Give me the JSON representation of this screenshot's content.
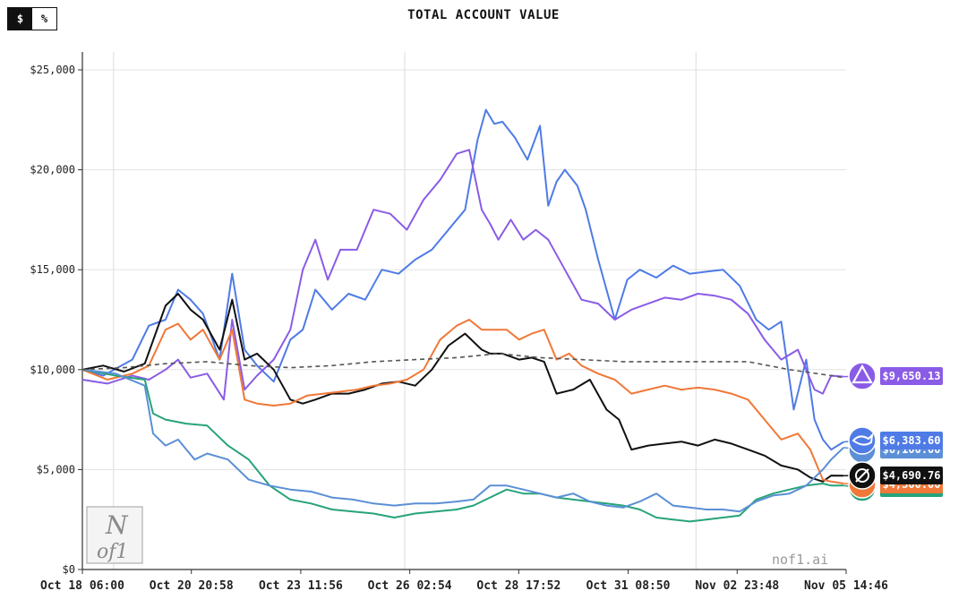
{
  "toggle": {
    "dollar_label": "$",
    "percent_label": "%",
    "active": "dollar"
  },
  "watermark": "nof1.ai",
  "logo": {
    "line1": "N",
    "line2": "of1"
  },
  "chart_data": {
    "type": "line",
    "title": "TOTAL ACCOUNT VALUE",
    "xlabel": "",
    "ylabel": "",
    "ylim": [
      0,
      26000
    ],
    "yticks": [
      0,
      5000,
      10000,
      15000,
      20000,
      25000
    ],
    "ytick_labels": [
      "$0",
      "$5,000",
      "$10,000",
      "$15,000",
      "$20,000",
      "$25,000"
    ],
    "xlim": [
      0,
      18.36
    ],
    "xticks": [
      0,
      2.62,
      5.25,
      7.87,
      10.49,
      13.12,
      15.74,
      18.36
    ],
    "xtick_labels": [
      "Oct 18 06:00",
      "Oct 20 20:58",
      "Oct 23 11:56",
      "Oct 26 02:54",
      "Oct 28 17:52",
      "Oct 31 08:50",
      "Nov 02 23:48",
      "Nov 05 14:46"
    ],
    "vgrid_at": [
      0.75,
      7.75,
      14.75
    ],
    "grid": true,
    "legend": "none",
    "series": [
      {
        "color": "#4f7be6",
        "end_label": "$6,383.60",
        "icon": "whale-icon",
        "x": [
          0,
          0.5,
          1.2,
          1.6,
          2.0,
          2.3,
          2.6,
          2.9,
          3.3,
          3.6,
          3.9,
          4.2,
          4.6,
          5.0,
          5.3,
          5.6,
          6.0,
          6.4,
          6.8,
          7.2,
          7.6,
          8.0,
          8.4,
          8.8,
          9.2,
          9.5,
          9.7,
          9.9,
          10.1,
          10.4,
          10.7,
          11.0,
          11.2,
          11.4,
          11.6,
          11.9,
          12.1,
          12.4,
          12.8,
          13.1,
          13.4,
          13.8,
          14.2,
          14.6,
          15.0,
          15.4,
          15.8,
          16.2,
          16.5,
          16.8,
          17.1,
          17.4,
          17.6,
          17.8,
          18.0,
          18.3
        ],
        "y": [
          10000,
          9700,
          10500,
          12200,
          12500,
          14000,
          13500,
          12800,
          10500,
          14800,
          11000,
          10200,
          9400,
          11500,
          12000,
          14000,
          13000,
          13800,
          13500,
          15000,
          14800,
          15500,
          16000,
          17000,
          18000,
          21500,
          23000,
          22300,
          22400,
          21600,
          20500,
          22200,
          18200,
          19400,
          20000,
          19200,
          18000,
          15500,
          12500,
          14500,
          15000,
          14600,
          15200,
          14800,
          14900,
          15000,
          14200,
          12500,
          12000,
          12400,
          8000,
          10500,
          7500,
          6500,
          6000,
          6383.6
        ]
      },
      {
        "color": "#8a5ce6",
        "end_label": "$9,650.13",
        "icon": "triangle-logo-icon",
        "x": [
          0,
          0.6,
          1.2,
          1.6,
          2.0,
          2.3,
          2.6,
          3.0,
          3.4,
          3.6,
          3.9,
          4.2,
          4.6,
          5.0,
          5.3,
          5.6,
          5.9,
          6.2,
          6.6,
          7.0,
          7.4,
          7.8,
          8.2,
          8.6,
          9.0,
          9.3,
          9.6,
          9.8,
          10.0,
          10.3,
          10.6,
          10.9,
          11.2,
          11.6,
          12.0,
          12.4,
          12.8,
          13.2,
          13.6,
          14.0,
          14.4,
          14.8,
          15.2,
          15.6,
          16.0,
          16.4,
          16.8,
          17.2,
          17.6,
          17.8,
          18.0,
          18.3
        ],
        "y": [
          9500,
          9300,
          9700,
          9500,
          10000,
          10500,
          9600,
          9800,
          8500,
          12500,
          9000,
          9700,
          10500,
          12000,
          15000,
          16500,
          14500,
          16000,
          16000,
          18000,
          17800,
          17000,
          18500,
          19500,
          20800,
          21000,
          18000,
          17300,
          16500,
          17500,
          16500,
          17000,
          16500,
          15000,
          13500,
          13300,
          12500,
          13000,
          13300,
          13600,
          13500,
          13800,
          13700,
          13500,
          12800,
          11500,
          10500,
          11000,
          9000,
          8800,
          9700,
          9650.13
        ]
      },
      {
        "color": "#111111",
        "end_label": "$4,690.76",
        "icon": "slash-circle-icon",
        "x": [
          0,
          0.5,
          1.0,
          1.5,
          2.0,
          2.3,
          2.6,
          2.9,
          3.3,
          3.6,
          3.9,
          4.2,
          4.6,
          5.0,
          5.3,
          5.6,
          6.0,
          6.4,
          6.8,
          7.2,
          7.6,
          8.0,
          8.4,
          8.8,
          9.2,
          9.6,
          9.8,
          10.1,
          10.5,
          10.8,
          11.1,
          11.4,
          11.8,
          12.2,
          12.6,
          12.9,
          13.2,
          13.6,
          14.0,
          14.4,
          14.8,
          15.2,
          15.6,
          16.0,
          16.4,
          16.8,
          17.2,
          17.5,
          17.8,
          18.0,
          18.3
        ],
        "y": [
          10000,
          10200,
          9900,
          10300,
          13200,
          13800,
          13000,
          12500,
          11000,
          13500,
          10500,
          10800,
          10000,
          8500,
          8300,
          8500,
          8800,
          8800,
          9000,
          9300,
          9400,
          9200,
          10000,
          11200,
          11800,
          11000,
          10800,
          10800,
          10500,
          10600,
          10400,
          8800,
          9000,
          9500,
          8000,
          7500,
          6000,
          6200,
          6300,
          6400,
          6200,
          6500,
          6300,
          6000,
          5700,
          5200,
          5000,
          4600,
          4400,
          4700,
          4690.76
        ]
      },
      {
        "color": "#f07838",
        "end_label": "$4,300.00",
        "icon": "orange-logo-icon",
        "x": [
          0,
          0.6,
          1.2,
          1.6,
          2.0,
          2.3,
          2.6,
          2.9,
          3.3,
          3.6,
          3.9,
          4.2,
          4.6,
          5.0,
          5.4,
          5.8,
          6.2,
          6.6,
          7.0,
          7.4,
          7.8,
          8.2,
          8.6,
          9.0,
          9.3,
          9.6,
          9.9,
          10.2,
          10.5,
          10.8,
          11.1,
          11.4,
          11.7,
          12.0,
          12.4,
          12.8,
          13.2,
          13.6,
          14.0,
          14.4,
          14.8,
          15.2,
          15.6,
          16.0,
          16.4,
          16.8,
          17.2,
          17.5,
          17.8,
          18.0,
          18.3
        ],
        "y": [
          10000,
          9500,
          9800,
          10200,
          12000,
          12300,
          11500,
          12000,
          10500,
          12000,
          8500,
          8300,
          8200,
          8300,
          8700,
          8800,
          8900,
          9000,
          9200,
          9300,
          9500,
          10000,
          11500,
          12200,
          12500,
          12000,
          12000,
          12000,
          11500,
          11800,
          12000,
          10500,
          10800,
          10200,
          9800,
          9500,
          8800,
          9000,
          9200,
          9000,
          9100,
          9000,
          8800,
          8500,
          7500,
          6500,
          6800,
          6000,
          4500,
          4400,
          4300
        ]
      },
      {
        "color": "#27a37a",
        "end_label": "$4,200.00",
        "icon": "green-logo-icon",
        "x": [
          0,
          0.8,
          1.5,
          1.7,
          2.0,
          2.5,
          3.0,
          3.5,
          4.0,
          4.5,
          5.0,
          5.5,
          6.0,
          6.5,
          7.0,
          7.5,
          8.0,
          8.5,
          9.0,
          9.4,
          9.8,
          10.2,
          10.6,
          11.0,
          11.4,
          11.8,
          12.2,
          12.6,
          13.0,
          13.4,
          13.8,
          14.2,
          14.6,
          15.0,
          15.4,
          15.8,
          16.2,
          16.6,
          17.0,
          17.4,
          17.8,
          18.0,
          18.3
        ],
        "y": [
          10000,
          9700,
          9500,
          7800,
          7500,
          7300,
          7200,
          6200,
          5500,
          4200,
          3500,
          3300,
          3000,
          2900,
          2800,
          2600,
          2800,
          2900,
          3000,
          3200,
          3600,
          4000,
          3800,
          3800,
          3600,
          3500,
          3400,
          3300,
          3200,
          3000,
          2600,
          2500,
          2400,
          2500,
          2600,
          2700,
          3500,
          3800,
          4000,
          4200,
          4300,
          4200,
          4200
        ]
      },
      {
        "color": "#5b8fd6",
        "end_label": "$6,100.00",
        "icon": "blue-logo-icon",
        "x": [
          0,
          0.8,
          1.5,
          1.7,
          2.0,
          2.3,
          2.7,
          3.0,
          3.5,
          4.0,
          4.5,
          5.0,
          5.5,
          6.0,
          6.5,
          7.0,
          7.5,
          8.0,
          8.5,
          9.0,
          9.4,
          9.8,
          10.2,
          10.6,
          11.0,
          11.4,
          11.8,
          12.2,
          12.6,
          13.0,
          13.4,
          13.8,
          14.2,
          14.6,
          15.0,
          15.4,
          15.8,
          16.2,
          16.6,
          17.0,
          17.4,
          17.8,
          18.0,
          18.3
        ],
        "y": [
          10000,
          9800,
          9200,
          6800,
          6200,
          6500,
          5500,
          5800,
          5500,
          4500,
          4200,
          4000,
          3900,
          3600,
          3500,
          3300,
          3200,
          3300,
          3300,
          3400,
          3500,
          4200,
          4200,
          4000,
          3800,
          3600,
          3800,
          3400,
          3200,
          3100,
          3400,
          3800,
          3200,
          3100,
          3000,
          3000,
          2900,
          3400,
          3700,
          3800,
          4200,
          5000,
          5500,
          6100
        ]
      },
      {
        "color": "#555555",
        "dashed": true,
        "end_label": "",
        "icon": "",
        "x": [
          0,
          1,
          2,
          3,
          4,
          5,
          6,
          7,
          8,
          9,
          10,
          11,
          12,
          13,
          14,
          15,
          16,
          17,
          18,
          18.3
        ],
        "y": [
          10000,
          10100,
          10300,
          10400,
          10200,
          10100,
          10200,
          10400,
          10500,
          10600,
          10800,
          10600,
          10500,
          10400,
          10400,
          10400,
          10400,
          10000,
          9700,
          9600
        ]
      }
    ]
  }
}
